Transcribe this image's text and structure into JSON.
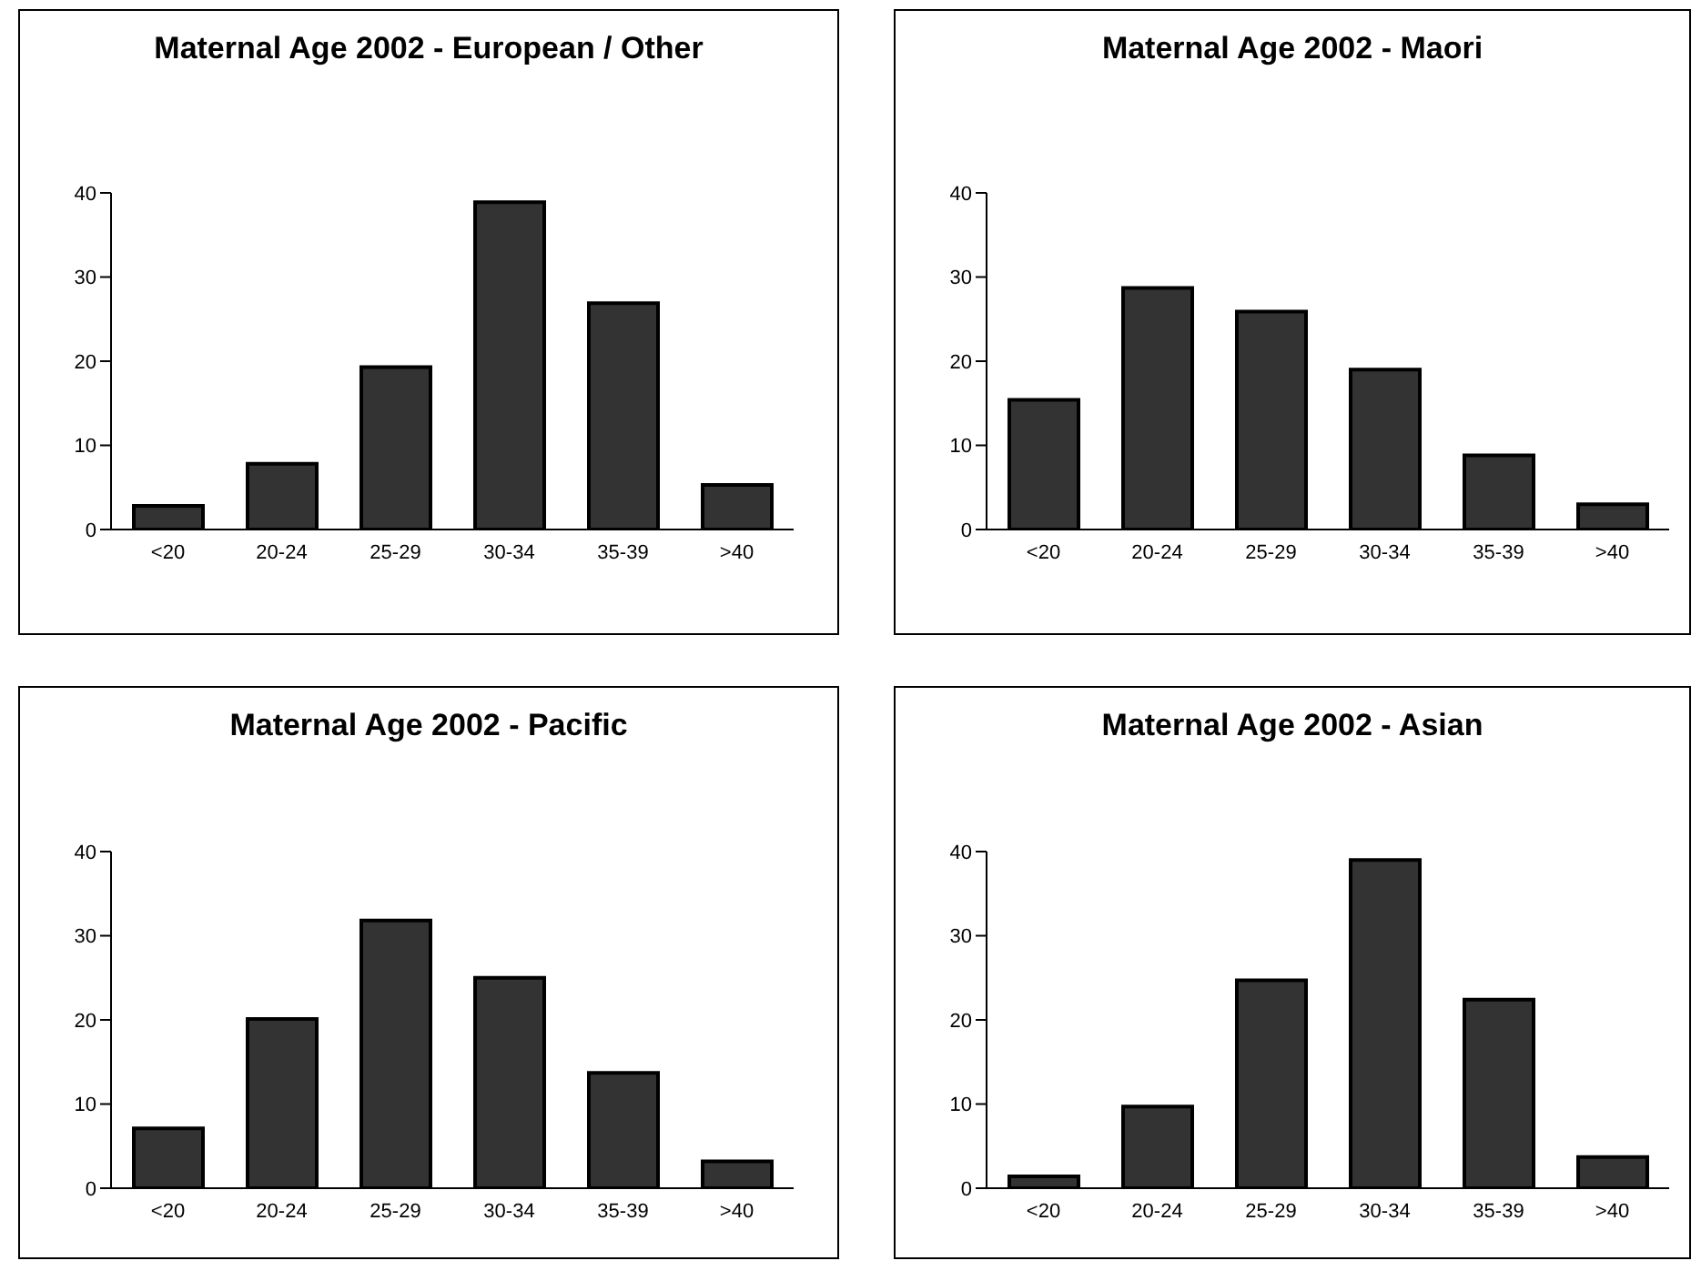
{
  "chart_data": [
    {
      "type": "bar",
      "title": "Maternal Age 2002 - European / Other",
      "categories": [
        "<20",
        "20-24",
        "25-29",
        "30-34",
        "35-39",
        ">40"
      ],
      "values": [
        2.8,
        7.8,
        19.3,
        38.9,
        26.9,
        5.3
      ],
      "color": "#333333",
      "ylim": [
        0,
        40
      ],
      "yticks": [
        0,
        10,
        20,
        30,
        40
      ]
    },
    {
      "type": "bar",
      "title": "Maternal Age 2002 - Maori",
      "categories": [
        "<20",
        "20-24",
        "25-29",
        "30-34",
        "35-39",
        ">40"
      ],
      "values": [
        15.4,
        28.7,
        25.9,
        19.0,
        8.8,
        3.0
      ],
      "color": "#333333",
      "ylim": [
        0,
        40
      ],
      "yticks": [
        0,
        10,
        20,
        30,
        40
      ]
    },
    {
      "type": "bar",
      "title": "Maternal Age 2002 - Pacific",
      "categories": [
        "<20",
        "20-24",
        "25-29",
        "30-34",
        "35-39",
        ">40"
      ],
      "values": [
        7.1,
        20.1,
        31.8,
        25.0,
        13.7,
        3.2
      ],
      "color": "#333333",
      "ylim": [
        0,
        40
      ],
      "yticks": [
        0,
        10,
        20,
        30,
        40
      ]
    },
    {
      "type": "bar",
      "title": "Maternal Age 2002 - Asian",
      "categories": [
        "<20",
        "20-24",
        "25-29",
        "30-34",
        "35-39",
        ">40"
      ],
      "values": [
        1.4,
        9.7,
        24.7,
        39.0,
        22.4,
        3.7
      ],
      "color": "#333333",
      "ylim": [
        0,
        40
      ],
      "yticks": [
        0,
        10,
        20,
        30,
        40
      ]
    }
  ]
}
